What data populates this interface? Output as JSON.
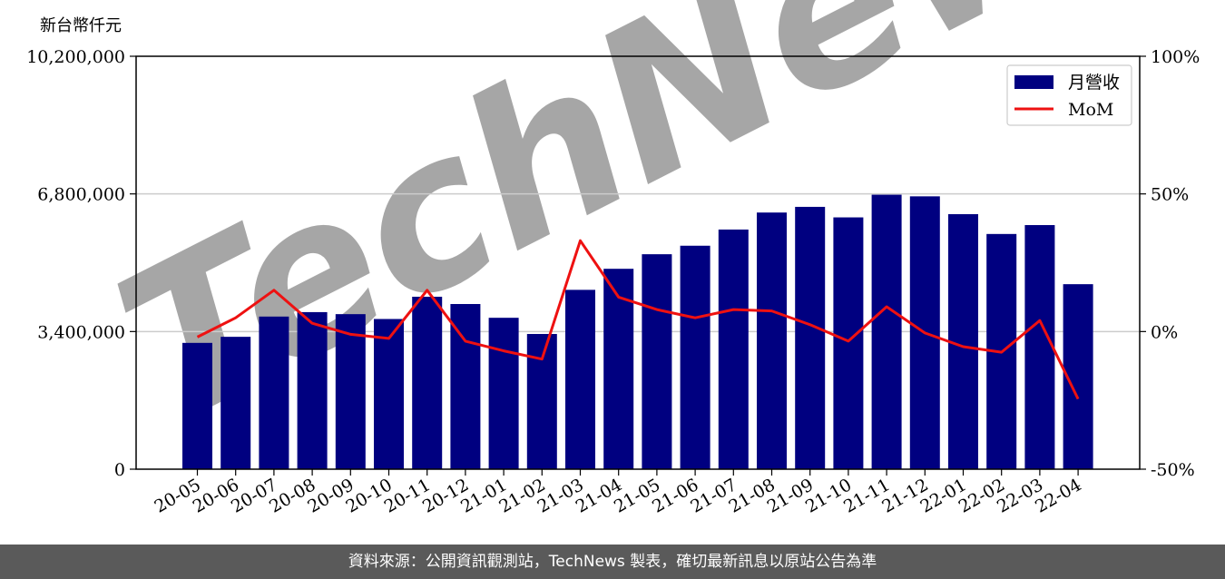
{
  "chart_data": {
    "type": "bar",
    "y_unit_label": "新台幣仟元",
    "categories": [
      "20-05",
      "20-06",
      "20-07",
      "20-08",
      "20-09",
      "20-10",
      "20-11",
      "20-12",
      "21-01",
      "21-02",
      "21-03",
      "21-04",
      "21-05",
      "21-06",
      "21-07",
      "21-08",
      "21-09",
      "21-10",
      "21-11",
      "21-12",
      "22-01",
      "22-02",
      "22-03",
      "22-04"
    ],
    "series": [
      {
        "name": "月營收",
        "type": "bar",
        "axis": "left",
        "color": "#000080",
        "values": [
          3120000,
          3270000,
          3770000,
          3880000,
          3830000,
          3710000,
          4260000,
          4080000,
          3740000,
          3340000,
          4430000,
          4950000,
          5310000,
          5520000,
          5920000,
          6340000,
          6480000,
          6220000,
          6780000,
          6740000,
          6300000,
          5810000,
          6030000,
          4570000
        ]
      },
      {
        "name": "MoM",
        "type": "line",
        "axis": "right",
        "color": "#ee1111",
        "values": [
          -2,
          5,
          15,
          3,
          -1,
          -2.5,
          15,
          -3.5,
          -7,
          -10,
          33,
          12.5,
          8,
          5,
          8,
          7.5,
          2.5,
          -3.5,
          9,
          -0.5,
          -5.5,
          -7.5,
          4,
          -24.5
        ]
      }
    ],
    "left_axis": {
      "ylim": [
        0,
        10200000
      ],
      "ticks": [
        0,
        3400000,
        6800000,
        10200000
      ],
      "tick_labels": [
        "0",
        "3,400,000",
        "6,800,000",
        "10,200,000"
      ]
    },
    "right_axis": {
      "ylim": [
        -50,
        100
      ],
      "ticks": [
        -50,
        0,
        50,
        100
      ],
      "tick_labels": [
        "-50%",
        "0%",
        "50%",
        "100%"
      ]
    },
    "grid": "horizontal",
    "legend_position": "top-right"
  },
  "watermark": "TechNews",
  "footer": {
    "text": "資料來源：公開資訊觀測站，TechNews 製表，確切最新訊息以原站公告為準"
  }
}
